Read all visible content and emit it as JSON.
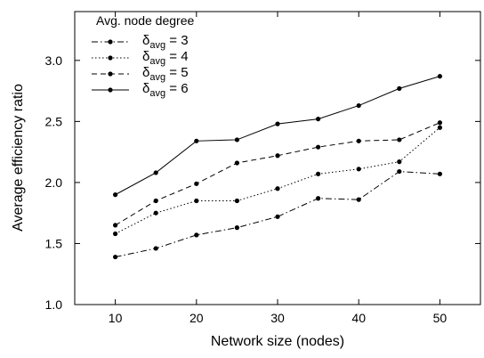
{
  "chart_data": {
    "type": "line",
    "title": "",
    "xlabel": "Network size (nodes)",
    "ylabel": "Average efficiency ratio",
    "xlim": [
      5,
      55
    ],
    "ylim": [
      1.0,
      3.4
    ],
    "xticks": [
      "10",
      "20",
      "30",
      "40",
      "50"
    ],
    "yticks": [
      "1.0",
      "1.5",
      "2.0",
      "2.5",
      "3.0"
    ],
    "x": [
      10,
      15,
      20,
      25,
      30,
      35,
      40,
      45,
      50
    ],
    "legend": {
      "title": "Avg. node degree",
      "position": "top-left"
    },
    "series": [
      {
        "name": "δavg = 3",
        "label_main": "δ",
        "label_sub": "avg",
        "label_tail": " = 3",
        "style": "dash-dot",
        "values": [
          1.39,
          1.46,
          1.57,
          1.63,
          1.72,
          1.87,
          1.86,
          2.09,
          2.07
        ]
      },
      {
        "name": "δavg = 4",
        "label_main": "δ",
        "label_sub": "avg",
        "label_tail": " = 4",
        "style": "dotted",
        "values": [
          1.58,
          1.75,
          1.85,
          1.85,
          1.95,
          2.07,
          2.11,
          2.17,
          2.45
        ]
      },
      {
        "name": "δavg = 5",
        "label_main": "δ",
        "label_sub": "avg",
        "label_tail": " = 5",
        "style": "dashed",
        "values": [
          1.65,
          1.85,
          1.99,
          2.16,
          2.22,
          2.29,
          2.34,
          2.35,
          2.49
        ]
      },
      {
        "name": "δavg = 6",
        "label_main": "δ",
        "label_sub": "avg",
        "label_tail": " = 6",
        "style": "solid",
        "values": [
          1.9,
          2.08,
          2.34,
          2.35,
          2.48,
          2.52,
          2.63,
          2.77,
          2.87
        ]
      }
    ],
    "grid": false,
    "line_color": "#000000"
  }
}
